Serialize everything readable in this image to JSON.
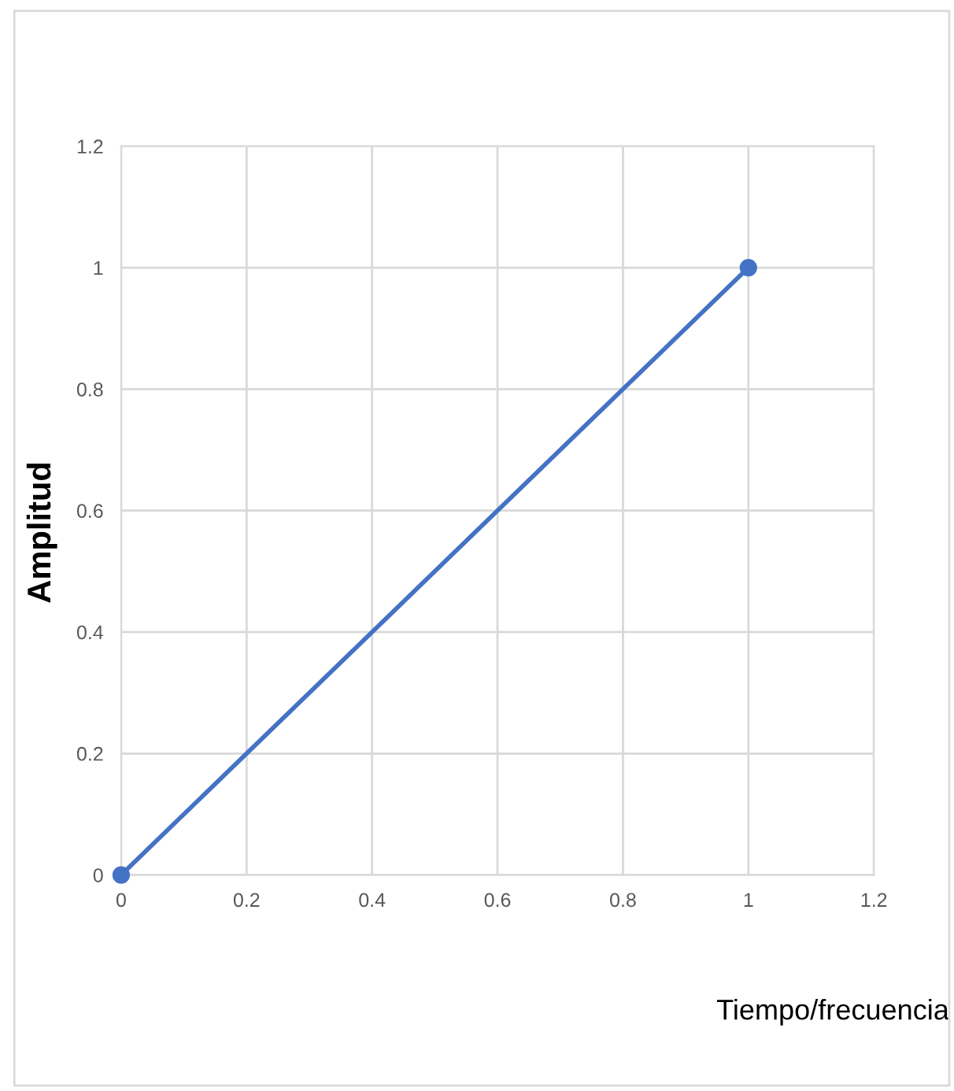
{
  "chart_data": {
    "type": "line",
    "xlabel": "Tiempo/frecuencia",
    "ylabel": "Amplitud",
    "x": [
      0,
      1
    ],
    "series": [
      {
        "color": "#4472c4",
        "values": [
          0,
          1
        ]
      }
    ],
    "xlim": [
      0,
      1.2
    ],
    "xticks": [
      0,
      0.2,
      0.4,
      0.6,
      0.8,
      1,
      1.2
    ],
    "ylim": [
      0,
      1.2
    ],
    "yticks": [
      0,
      0.2,
      0.4,
      0.6,
      0.8,
      1,
      1.2
    ],
    "grid": true,
    "marker": "circle",
    "line_style": "solid"
  }
}
